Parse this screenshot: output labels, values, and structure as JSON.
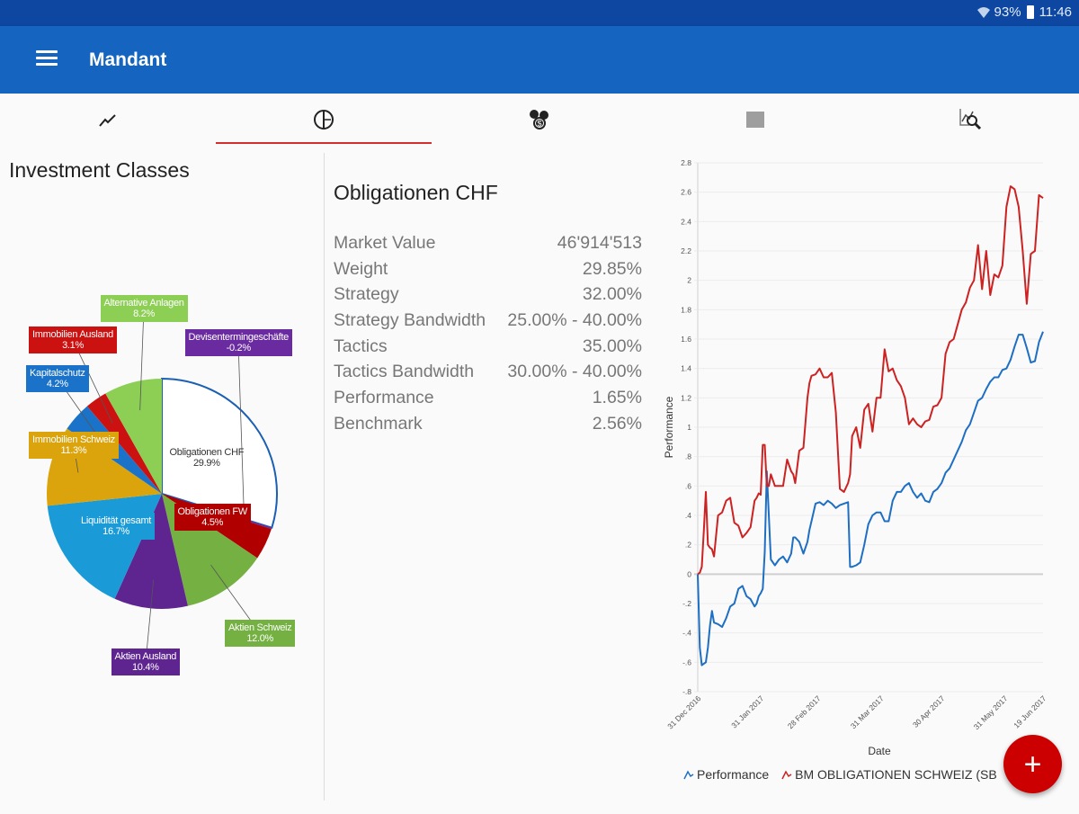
{
  "statusbar": {
    "battery": "93%",
    "time": "11:46",
    "icons": [
      "wifi-icon",
      "battery-icon"
    ]
  },
  "appbar": {
    "title": "Mandant",
    "menu_icon": "hamburger-menu-icon"
  },
  "tabs": [
    {
      "icon": "trend-line-icon",
      "active": false
    },
    {
      "icon": "pie-chart-icon",
      "active": true
    },
    {
      "icon": "coins-icon",
      "active": false
    },
    {
      "icon": "square-icon",
      "active": false
    },
    {
      "icon": "chart-search-icon",
      "active": false
    }
  ],
  "colors": {
    "status_bar": "#0d47a1",
    "app_bar": "#1565c0",
    "tab_indicator": "#d32f2f",
    "fab": "#cc0000",
    "performance_line": "#1e6fc4",
    "benchmark_line": "#cc2222"
  },
  "left_panel": {
    "heading": "Investment Classes"
  },
  "pie": {
    "slices": [
      {
        "name": "Obligationen CHF",
        "value": 29.9,
        "label": "29.9%",
        "color": "#ffffff",
        "stroke": "#1a5fb4"
      },
      {
        "name": "Devisentermingeschäfte",
        "value": -0.2,
        "label": "-0.2%",
        "color": "#6a2ba0"
      },
      {
        "name": "Obligationen FW",
        "value": 4.5,
        "label": "4.5%",
        "color": "#b00000"
      },
      {
        "name": "Aktien Schweiz",
        "value": 12.0,
        "label": "12.0%",
        "color": "#74b042"
      },
      {
        "name": "Aktien Ausland",
        "value": 10.4,
        "label": "10.4%",
        "color": "#5e2590"
      },
      {
        "name": "Liquidität gesamt",
        "value": 16.7,
        "label": "16.7%",
        "color": "#1a9bd7"
      },
      {
        "name": "Immobilien Schweiz",
        "value": 11.3,
        "label": "11.3%",
        "color": "#dba40c"
      },
      {
        "name": "Kapitalschutz",
        "value": 4.2,
        "label": "4.2%",
        "color": "#1a73c9"
      },
      {
        "name": "Immobilien Ausland",
        "value": 3.1,
        "label": "3.1%",
        "color": "#cc1111"
      },
      {
        "name": "Alternative Anlagen",
        "value": 8.2,
        "label": "8.2%",
        "color": "#8dcf55"
      }
    ]
  },
  "detail": {
    "title": "Obligationen CHF",
    "rows": [
      {
        "label": "Market Value",
        "value": "46'914'513"
      },
      {
        "label": "Weight",
        "value": "29.85%"
      },
      {
        "label": "Strategy",
        "value": "32.00%"
      },
      {
        "label": "Strategy Bandwidth",
        "value": "25.00% - 40.00%"
      },
      {
        "label": "Tactics",
        "value": "35.00%"
      },
      {
        "label": "Tactics Bandwidth",
        "value": "30.00% - 40.00%"
      },
      {
        "label": "Performance",
        "value": "1.65%"
      },
      {
        "label": "Benchmark",
        "value": "2.56%"
      }
    ]
  },
  "chart_data": {
    "type": "line",
    "title": "",
    "xlabel": "Date",
    "ylabel": "Performance",
    "ylim": [
      -0.8,
      2.8
    ],
    "yticks": [
      -0.8,
      -0.6,
      -0.4,
      -0.2,
      0,
      0.2,
      0.4,
      0.6,
      0.8,
      1,
      1.2,
      1.4,
      1.6,
      1.8,
      2,
      2.2,
      2.4,
      2.6,
      2.8
    ],
    "ytick_labels": [
      "-.8",
      "-.6",
      "-.4",
      "-.2",
      "0",
      ".2",
      ".4",
      ".6",
      ".8",
      "1",
      "1.2",
      "1.4",
      "1.6",
      "1.8",
      "2",
      "2.2",
      "2.4",
      "2.6",
      "2.8"
    ],
    "xlim": [
      0,
      170
    ],
    "xticks": [
      0,
      31,
      59,
      90,
      120,
      151,
      170
    ],
    "xtick_labels": [
      "31 Dec 2016",
      "31 Jan 2017",
      "28 Feb 2017",
      "31 Mar 2017",
      "30 Apr 2017",
      "31 May 2017",
      "19 Jun 2017"
    ],
    "grid": true,
    "legend": "bottom",
    "series": [
      {
        "name": "Performance",
        "color": "#1e6fc4",
        "x": [
          0,
          1,
          2,
          4,
          5,
          6,
          7,
          8,
          10,
          12,
          14,
          16,
          18,
          20,
          22,
          24,
          26,
          28,
          29,
          30,
          31,
          32,
          33,
          34,
          36,
          38,
          40,
          42,
          44,
          46,
          47,
          48,
          50,
          52,
          54,
          55,
          56,
          58,
          60,
          62,
          64,
          66,
          68,
          70,
          72,
          74,
          75,
          76,
          78,
          80,
          82,
          84,
          86,
          88,
          90,
          92,
          94,
          96,
          98,
          100,
          102,
          104,
          106,
          108,
          110,
          112,
          114,
          116,
          118,
          120,
          122,
          124,
          126,
          128,
          130,
          132,
          134,
          136,
          138,
          140,
          142,
          144,
          146,
          148,
          150,
          152,
          154,
          156,
          158,
          160,
          162,
          164,
          166,
          168,
          170
        ],
        "y": [
          0,
          -0.5,
          -0.62,
          -0.6,
          -0.5,
          -0.35,
          -0.25,
          -0.33,
          -0.34,
          -0.36,
          -0.3,
          -0.22,
          -0.2,
          -0.1,
          -0.08,
          -0.15,
          -0.17,
          -0.22,
          -0.2,
          -0.15,
          -0.13,
          -0.1,
          0.15,
          0.7,
          0.1,
          0.06,
          0.1,
          0.12,
          0.08,
          0.14,
          0.25,
          0.25,
          0.22,
          0.14,
          0.22,
          0.3,
          0.36,
          0.48,
          0.49,
          0.47,
          0.5,
          0.48,
          0.45,
          0.47,
          0.48,
          0.49,
          0.05,
          0.05,
          0.06,
          0.08,
          0.2,
          0.34,
          0.4,
          0.42,
          0.42,
          0.36,
          0.36,
          0.5,
          0.56,
          0.56,
          0.6,
          0.62,
          0.56,
          0.52,
          0.55,
          0.5,
          0.49,
          0.56,
          0.58,
          0.62,
          0.69,
          0.72,
          0.78,
          0.84,
          0.9,
          0.98,
          1.02,
          1.1,
          1.18,
          1.2,
          1.26,
          1.31,
          1.34,
          1.34,
          1.39,
          1.4,
          1.46,
          1.55,
          1.63,
          1.63,
          1.54,
          1.44,
          1.45,
          1.58,
          1.65
        ]
      },
      {
        "name": "BM OBLIGATIONEN SCHWEIZ (SB...",
        "color": "#cc2222",
        "x": [
          0,
          1,
          2,
          3,
          4,
          5,
          6,
          7,
          8,
          10,
          12,
          14,
          16,
          18,
          20,
          22,
          24,
          26,
          28,
          29,
          30,
          31,
          32,
          33,
          34,
          35,
          36,
          38,
          40,
          42,
          44,
          46,
          47,
          48,
          50,
          52,
          54,
          55,
          56,
          58,
          60,
          62,
          64,
          66,
          68,
          70,
          72,
          74,
          75,
          76,
          78,
          80,
          82,
          84,
          86,
          88,
          90,
          92,
          94,
          96,
          98,
          100,
          102,
          104,
          106,
          108,
          110,
          112,
          114,
          116,
          118,
          120,
          122,
          124,
          126,
          128,
          130,
          132,
          134,
          136,
          138,
          140,
          142,
          144,
          146,
          148,
          150,
          152,
          154,
          156,
          158,
          160,
          162,
          164,
          166,
          168,
          170
        ],
        "y": [
          0,
          0.01,
          0.05,
          0.3,
          0.56,
          0.2,
          0.18,
          0.17,
          0.12,
          0.4,
          0.42,
          0.5,
          0.52,
          0.35,
          0.33,
          0.25,
          0.28,
          0.32,
          0.5,
          0.52,
          0.55,
          0.54,
          0.88,
          0.88,
          0.6,
          0.6,
          0.68,
          0.6,
          0.6,
          0.6,
          0.78,
          0.7,
          0.68,
          0.62,
          0.84,
          0.86,
          1.2,
          1.3,
          1.35,
          1.36,
          1.4,
          1.34,
          1.34,
          1.37,
          1.1,
          0.58,
          0.56,
          0.62,
          0.68,
          0.94,
          1.0,
          0.86,
          1.12,
          1.16,
          0.97,
          1.2,
          1.2,
          1.53,
          1.38,
          1.4,
          1.32,
          1.28,
          1.2,
          1.02,
          1.06,
          1.02,
          1.0,
          1.04,
          1.05,
          1.14,
          1.15,
          1.2,
          1.5,
          1.58,
          1.6,
          1.7,
          1.8,
          1.85,
          1.95,
          2.0,
          2.24,
          1.94,
          2.2,
          1.9,
          2.04,
          2.02,
          2.1,
          2.5,
          2.64,
          2.62,
          2.5,
          2.2,
          1.84,
          2.18,
          2.2,
          2.58,
          2.56
        ]
      }
    ]
  },
  "legend": {
    "items": [
      {
        "label": "Performance",
        "color": "#1e6fc4"
      },
      {
        "label": "BM OBLIGATIONEN SCHWEIZ (SB",
        "color": "#cc2222"
      }
    ]
  },
  "fab": {
    "label": "+",
    "icon": "plus-icon"
  }
}
